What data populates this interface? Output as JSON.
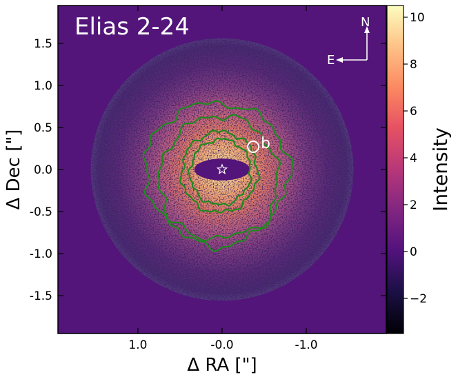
{
  "chart_data": {
    "type": "heatmap",
    "title": "Elias 2-24",
    "xlabel": "Δ RA [\"]",
    "ylabel": "Δ Dec [\"]",
    "x_ticks": [
      {
        "value": 1.0,
        "label": "1.0"
      },
      {
        "value": 0.0,
        "label": "-0.0"
      },
      {
        "value": -1.0,
        "label": "-1.0"
      }
    ],
    "y_ticks": [
      {
        "value": 1.5,
        "label": "1.5"
      },
      {
        "value": 1.0,
        "label": "1.0"
      },
      {
        "value": 0.5,
        "label": "0.5"
      },
      {
        "value": 0.0,
        "label": "0.0"
      },
      {
        "value": -0.5,
        "label": "-0.5"
      },
      {
        "value": -1.0,
        "label": "-1.0"
      },
      {
        "value": -1.5,
        "label": "-1.5"
      }
    ],
    "xlim": [
      1.95,
      -1.95
    ],
    "ylim": [
      -1.95,
      1.95
    ],
    "colorbar": {
      "label": "Intensity",
      "range": [
        -3.5,
        10.5
      ],
      "ticks": [
        {
          "value": 10,
          "label": "10"
        },
        {
          "value": 8,
          "label": "8"
        },
        {
          "value": 6,
          "label": "6"
        },
        {
          "value": 4,
          "label": "4"
        },
        {
          "value": 2,
          "label": "2"
        },
        {
          "value": 0,
          "label": "0"
        },
        {
          "value": -2,
          "label": "−2"
        }
      ]
    },
    "annotations": {
      "planet_label": "b",
      "planet_position": [
        -0.37,
        0.27
      ],
      "star_position": [
        0.0,
        0.0
      ],
      "compass_north": "N",
      "compass_east": "E"
    },
    "disk": {
      "outer_radius": 1.56,
      "coronagraph_mask": {
        "ra_half_width": 0.33,
        "dec_half_height": 0.13
      }
    },
    "contours": [
      {
        "center": [
          0.02,
          -0.03
        ],
        "ra_half_width": 0.36,
        "dec_half_height": 0.39,
        "tilt_deg": 8
      },
      {
        "center": [
          0.03,
          -0.03
        ],
        "ra_half_width": 0.45,
        "dec_half_height": 0.48,
        "tilt_deg": 8
      },
      {
        "center": [
          0.06,
          -0.01
        ],
        "ra_half_width": 0.86,
        "dec_half_height": 0.8,
        "tilt_deg": 6
      },
      {
        "center": [
          0.04,
          -0.14
        ],
        "ra_half_width": 0.7,
        "dec_half_height": 0.78,
        "tilt_deg": 4
      }
    ],
    "colors": {
      "background": "#53157a",
      "contour": "#1f8a1f",
      "annotation": "#ffffff"
    }
  }
}
